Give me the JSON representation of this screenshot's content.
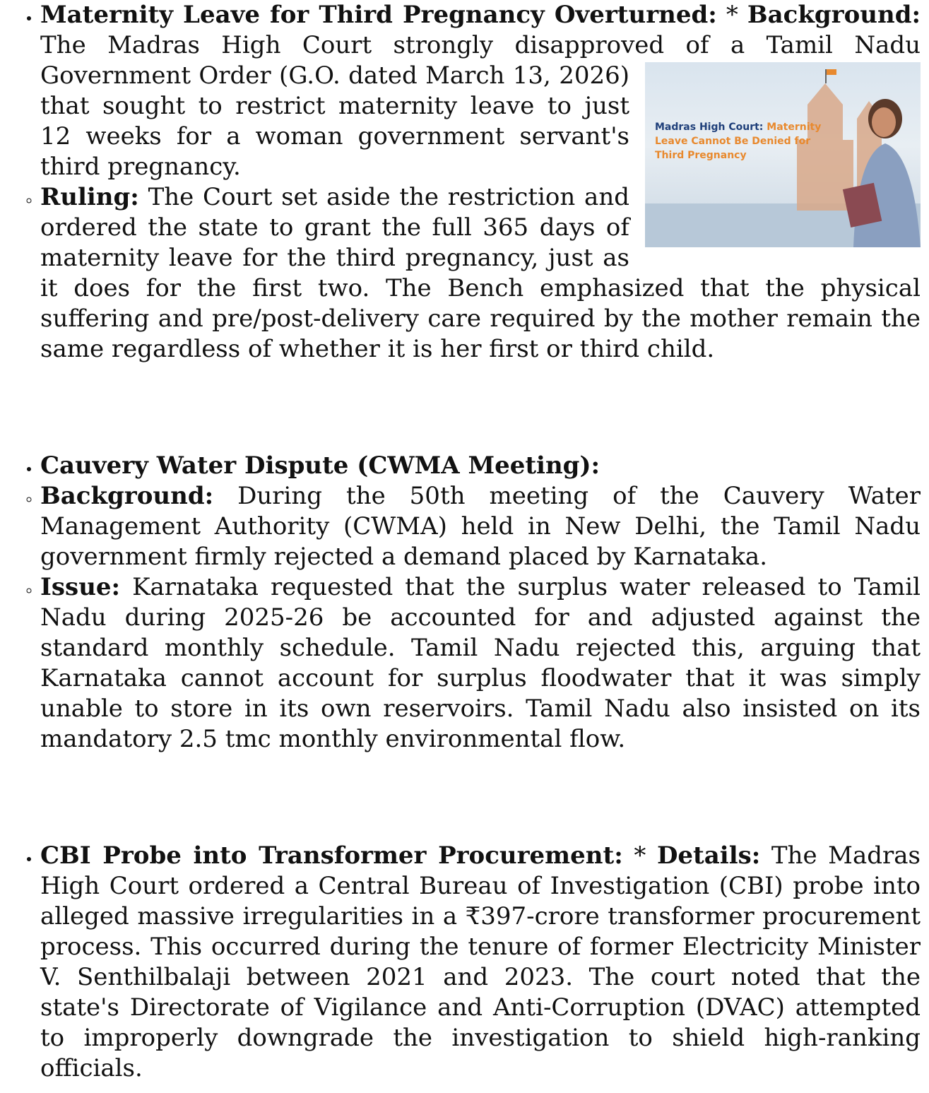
{
  "sections": [
    {
      "title": "Maternity Leave for Third Pregnancy Overturned:",
      "marker": "*",
      "lead_label": "Background:",
      "lead_text": "The Madras High Court strongly disapproved of a Tamil Nadu Government Order (G.O. dated March 13, 2026) that sought to restrict maternity leave to just 12 weeks for a woman government servant's third pregnancy.",
      "image": {
        "caption_bold": "Madras High Court:",
        "caption_rest": "Maternity Leave Cannot Be Denied for Third Pregnancy"
      },
      "items": [
        {
          "label": "Ruling:",
          "text": "The Court set aside the restriction and ordered the state to grant the full 365 days of maternity leave for the third pregnancy, just as it does for the first two. The Bench emphasized that the physical suffering and pre/post-delivery care required by the mother remain the same regardless of whether it is her first or third child."
        }
      ]
    },
    {
      "title": "Cauvery Water Dispute (CWMA Meeting):",
      "items": [
        {
          "label": "Background:",
          "text": "During the 50th meeting of the Cauvery Water Management Authority (CWMA) held in New Delhi, the Tamil Nadu government firmly rejected a demand placed by Karnataka."
        },
        {
          "label": "Issue:",
          "text": "Karnataka requested that the surplus water released to Tamil Nadu during 2025-26 be accounted for and adjusted against the standard monthly schedule. Tamil Nadu rejected this, arguing that Karnataka cannot account for surplus floodwater that it was simply unable to store in its own reservoirs. Tamil Nadu also insisted on its mandatory 2.5 tmc monthly environmental flow."
        }
      ]
    },
    {
      "title": "CBI Probe into Transformer Procurement:",
      "marker": "*",
      "lead_label": "Details:",
      "lead_text": "The Madras High Court ordered a Central Bureau of Investigation (CBI) probe into alleged massive irregularities in a ₹397-crore transformer procurement process. This occurred during the tenure of former Electricity Minister V. Senthilbalaji between 2021 and 2023. The court noted that the state's Directorate of Vigilance and Anti-Corruption (DVAC) attempted to improperly downgrade the investigation to shield high-ranking officials."
    }
  ]
}
